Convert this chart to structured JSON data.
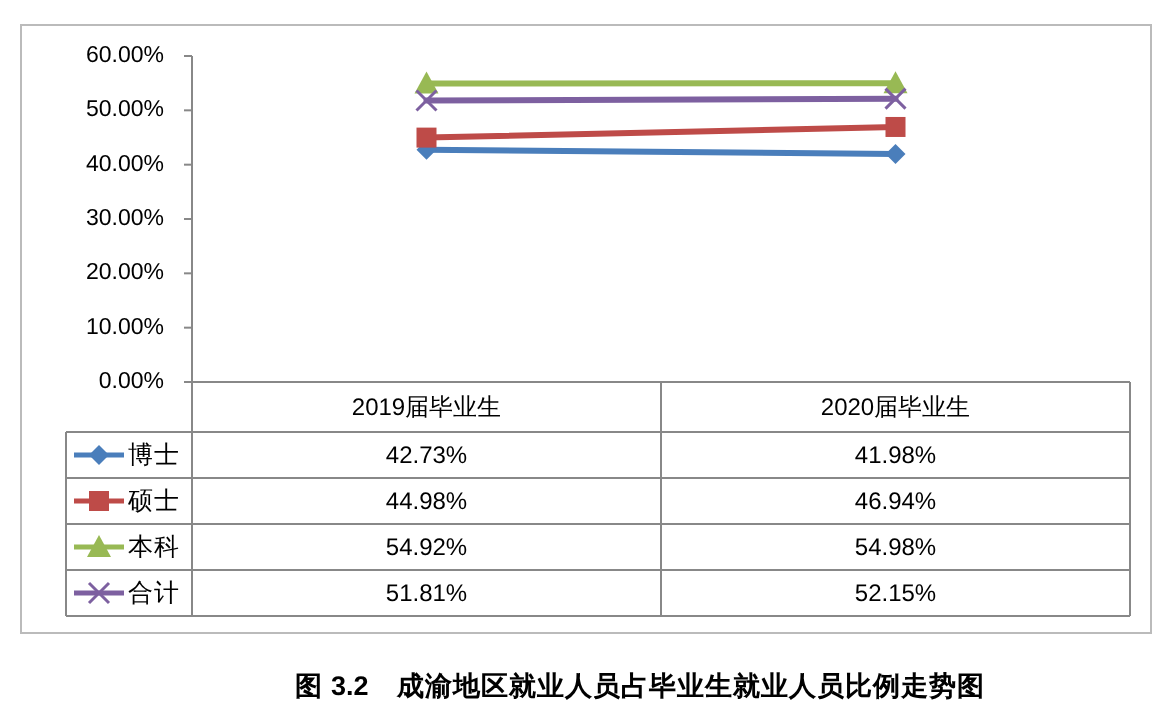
{
  "chart_data": {
    "type": "line",
    "title": "图 3.2　成渝地区就业人员占毕业生就业人员比例走势图",
    "categories": [
      "2019届毕业生",
      "2020届毕业生"
    ],
    "ylim": [
      0,
      60
    ],
    "yticks": [
      {
        "value": 0,
        "label": "0.00%"
      },
      {
        "value": 10,
        "label": "10.00%"
      },
      {
        "value": 20,
        "label": "20.00%"
      },
      {
        "value": 30,
        "label": "30.00%"
      },
      {
        "value": 40,
        "label": "40.00%"
      },
      {
        "value": 50,
        "label": "50.00%"
      },
      {
        "value": 60,
        "label": "60.00%"
      }
    ],
    "grid": false,
    "legend": "bottom",
    "series": [
      {
        "name": "博士",
        "color": "#4a7ebb",
        "marker": "diamond",
        "values": [
          42.73,
          41.98
        ],
        "value_labels": [
          "42.73%",
          "41.98%"
        ]
      },
      {
        "name": "硕士",
        "color": "#be4b48",
        "marker": "square",
        "values": [
          44.98,
          46.94
        ],
        "value_labels": [
          "44.98%",
          "46.94%"
        ]
      },
      {
        "name": "本科",
        "color": "#98b954",
        "marker": "triangle",
        "values": [
          54.92,
          54.98
        ],
        "value_labels": [
          "54.92%",
          "54.98%"
        ]
      },
      {
        "name": "合计",
        "color": "#7d60a0",
        "marker": "cross",
        "values": [
          51.81,
          52.15
        ],
        "value_labels": [
          "51.81%",
          "52.15%"
        ]
      }
    ]
  }
}
